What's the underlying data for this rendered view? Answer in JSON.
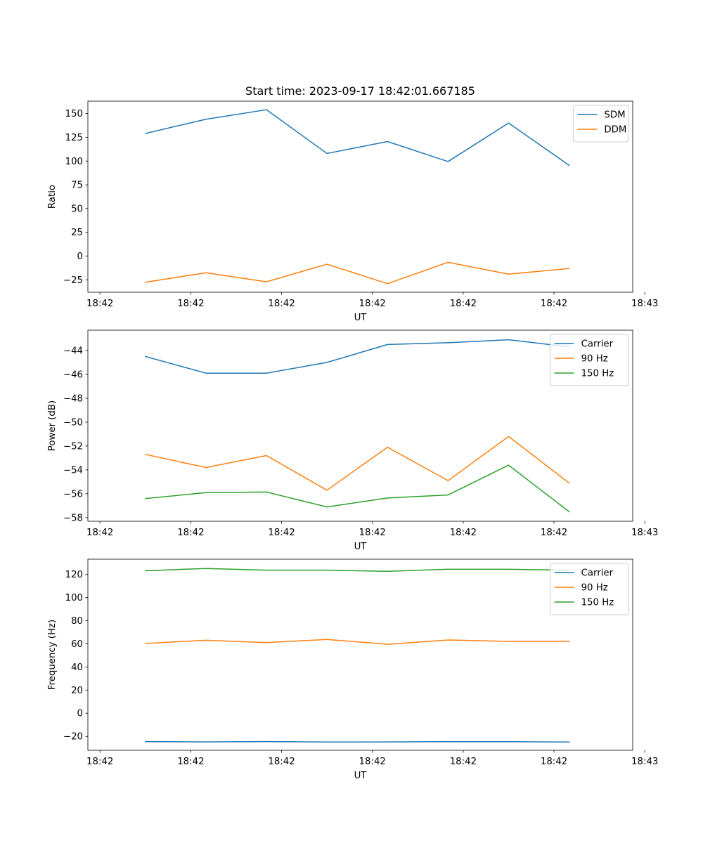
{
  "colors": {
    "blue": "#1f77b4",
    "orange": "#ff7f0e",
    "green": "#2ca02c"
  },
  "chart_data": [
    {
      "type": "line",
      "title": "Start time: 2023-09-17 18:42:01.667185",
      "xlabel": "UT",
      "ylabel": "Ratio",
      "xlim": [
        -0.5,
        8.5
      ],
      "ylim": [
        -38,
        163
      ],
      "x": [
        0.45,
        1.45,
        2.45,
        3.45,
        4.45,
        5.45,
        6.45,
        7.45
      ],
      "xticks": [
        -0.3,
        1.2,
        2.7,
        4.2,
        5.7,
        7.2,
        8.7
      ],
      "xtick_labels": [
        "18:42",
        "18:42",
        "18:42",
        "18:42",
        "18:42",
        "18:42",
        "18:43"
      ],
      "yticks": [
        -25,
        0,
        25,
        50,
        75,
        100,
        125,
        150
      ],
      "ytick_labels": [
        "−25",
        "0",
        "25",
        "50",
        "75",
        "100",
        "125",
        "150"
      ],
      "legend_position": "top-right",
      "series": [
        {
          "name": "SDM",
          "color": "#1f77b4",
          "values": [
            129,
            144,
            154,
            108,
            120.5,
            99.5,
            140,
            95.5
          ]
        },
        {
          "name": "DDM",
          "color": "#ff7f0e",
          "values": [
            -27.5,
            -17.5,
            -27,
            -8.5,
            -29,
            -6.5,
            -19,
            -13
          ]
        }
      ]
    },
    {
      "type": "line",
      "title": "",
      "xlabel": "UT",
      "ylabel": "Power (dB)",
      "xlim": [
        -0.5,
        8.5
      ],
      "ylim": [
        -58.3,
        -42.3
      ],
      "x": [
        0.45,
        1.45,
        2.45,
        3.45,
        4.45,
        5.45,
        6.45,
        7.45
      ],
      "xticks": [
        -0.3,
        1.2,
        2.7,
        4.2,
        5.7,
        7.2,
        8.7
      ],
      "xtick_labels": [
        "18:42",
        "18:42",
        "18:42",
        "18:42",
        "18:42",
        "18:42",
        "18:43"
      ],
      "yticks": [
        -58,
        -56,
        -54,
        -52,
        -50,
        -48,
        -46,
        -44
      ],
      "ytick_labels": [
        "−58",
        "−56",
        "−54",
        "−52",
        "−50",
        "−48",
        "−46",
        "−44"
      ],
      "legend_position": "top-right",
      "series": [
        {
          "name": "Carrier",
          "color": "#1f77b4",
          "values": [
            -44.5,
            -45.9,
            -45.9,
            -45.0,
            -43.5,
            -43.35,
            -43.1,
            -43.7
          ]
        },
        {
          "name": "90 Hz",
          "color": "#ff7f0e",
          "values": [
            -52.7,
            -53.8,
            -52.8,
            -55.7,
            -52.1,
            -54.9,
            -51.2,
            -55.1
          ]
        },
        {
          "name": "150 Hz",
          "color": "#2ca02c",
          "values": [
            -56.4,
            -55.9,
            -55.85,
            -57.1,
            -56.35,
            -56.1,
            -53.6,
            -57.5
          ]
        }
      ]
    },
    {
      "type": "line",
      "title": "",
      "xlabel": "UT",
      "ylabel": "Frequency (Hz)",
      "xlim": [
        -0.5,
        8.5
      ],
      "ylim": [
        -32,
        133
      ],
      "x": [
        0.45,
        1.45,
        2.45,
        3.45,
        4.45,
        5.45,
        6.45,
        7.45
      ],
      "xticks": [
        -0.3,
        1.2,
        2.7,
        4.2,
        5.7,
        7.2,
        8.7
      ],
      "xtick_labels": [
        "18:42",
        "18:42",
        "18:42",
        "18:42",
        "18:42",
        "18:42",
        "18:43"
      ],
      "yticks": [
        -20,
        0,
        20,
        40,
        60,
        80,
        100,
        120
      ],
      "ytick_labels": [
        "−20",
        "0",
        "20",
        "40",
        "60",
        "80",
        "100",
        "120"
      ],
      "legend_position": "top-right",
      "series": [
        {
          "name": "Carrier",
          "color": "#1f77b4",
          "values": [
            -24.5,
            -24.8,
            -24.5,
            -24.9,
            -24.8,
            -24.6,
            -24.6,
            -24.9
          ]
        },
        {
          "name": "90 Hz",
          "color": "#ff7f0e",
          "values": [
            60.2,
            63,
            61,
            63.7,
            59.5,
            63.2,
            62,
            62
          ]
        },
        {
          "name": "150 Hz",
          "color": "#2ca02c",
          "values": [
            123,
            125,
            123.5,
            123.5,
            122.5,
            124.3,
            124.3,
            123.5
          ]
        }
      ]
    }
  ]
}
